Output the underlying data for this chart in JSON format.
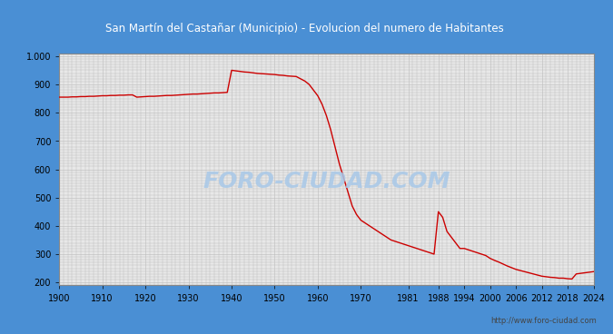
{
  "title": "San Martín del Castañar (Municipio) - Evolucion del numero de Habitantes",
  "title_bg_color": "#4a8fd4",
  "title_text_color": "white",
  "plot_bg_color": "#e8e8e8",
  "outer_bg_color": "#4a8fd4",
  "line_color": "#cc0000",
  "watermark_text": "FORO-CIUDAD.COM",
  "watermark_color": "#a8c8e8",
  "url_text": "http://www.foro-ciudad.com",
  "url_color": "#444444",
  "ylim": [
    190,
    1010
  ],
  "yticks": [
    200,
    300,
    400,
    500,
    600,
    700,
    800,
    900,
    1000
  ],
  "ytick_labels": [
    "200",
    "300",
    "400",
    "500",
    "600",
    "700",
    "800",
    "900",
    "1.000"
  ],
  "xticks": [
    1900,
    1910,
    1920,
    1930,
    1940,
    1950,
    1960,
    1970,
    1981,
    1988,
    1994,
    2000,
    2006,
    2012,
    2018,
    2024
  ],
  "years": [
    1900,
    1901,
    1902,
    1903,
    1904,
    1905,
    1906,
    1907,
    1908,
    1909,
    1910,
    1911,
    1912,
    1913,
    1914,
    1915,
    1916,
    1917,
    1918,
    1919,
    1920,
    1921,
    1922,
    1923,
    1924,
    1925,
    1926,
    1927,
    1928,
    1929,
    1930,
    1931,
    1932,
    1933,
    1934,
    1935,
    1936,
    1937,
    1938,
    1939,
    1940,
    1941,
    1942,
    1943,
    1944,
    1945,
    1946,
    1947,
    1948,
    1949,
    1950,
    1951,
    1952,
    1953,
    1954,
    1955,
    1956,
    1957,
    1958,
    1959,
    1960,
    1961,
    1962,
    1963,
    1964,
    1965,
    1966,
    1967,
    1968,
    1969,
    1970,
    1971,
    1972,
    1973,
    1974,
    1975,
    1976,
    1977,
    1978,
    1979,
    1980,
    1981,
    1982,
    1983,
    1984,
    1985,
    1986,
    1987,
    1988,
    1989,
    1990,
    1991,
    1992,
    1993,
    1994,
    1995,
    1996,
    1997,
    1998,
    1999,
    2000,
    2001,
    2002,
    2003,
    2004,
    2005,
    2006,
    2007,
    2008,
    2009,
    2010,
    2011,
    2012,
    2013,
    2014,
    2015,
    2016,
    2017,
    2018,
    2019,
    2020,
    2021,
    2022,
    2023,
    2024
  ],
  "population": [
    855,
    855,
    855,
    856,
    856,
    857,
    857,
    858,
    858,
    859,
    860,
    860,
    861,
    861,
    862,
    862,
    863,
    863,
    855,
    856,
    857,
    858,
    858,
    859,
    860,
    861,
    861,
    862,
    863,
    864,
    865,
    866,
    866,
    867,
    868,
    869,
    870,
    870,
    871,
    872,
    950,
    948,
    946,
    944,
    943,
    941,
    939,
    938,
    937,
    936,
    935,
    933,
    932,
    930,
    929,
    928,
    920,
    912,
    900,
    880,
    860,
    830,
    790,
    740,
    680,
    620,
    570,
    520,
    470,
    440,
    420,
    410,
    400,
    390,
    380,
    370,
    360,
    350,
    345,
    340,
    335,
    330,
    325,
    320,
    315,
    310,
    305,
    300,
    450,
    430,
    380,
    360,
    340,
    320,
    320,
    315,
    310,
    305,
    300,
    295,
    285,
    278,
    272,
    265,
    258,
    252,
    246,
    242,
    238,
    234,
    230,
    226,
    222,
    220,
    218,
    217,
    215,
    215,
    213,
    212,
    230,
    232,
    234,
    236,
    238
  ],
  "grid_color": "#bbbbbb",
  "grid_linewidth": 0.4
}
